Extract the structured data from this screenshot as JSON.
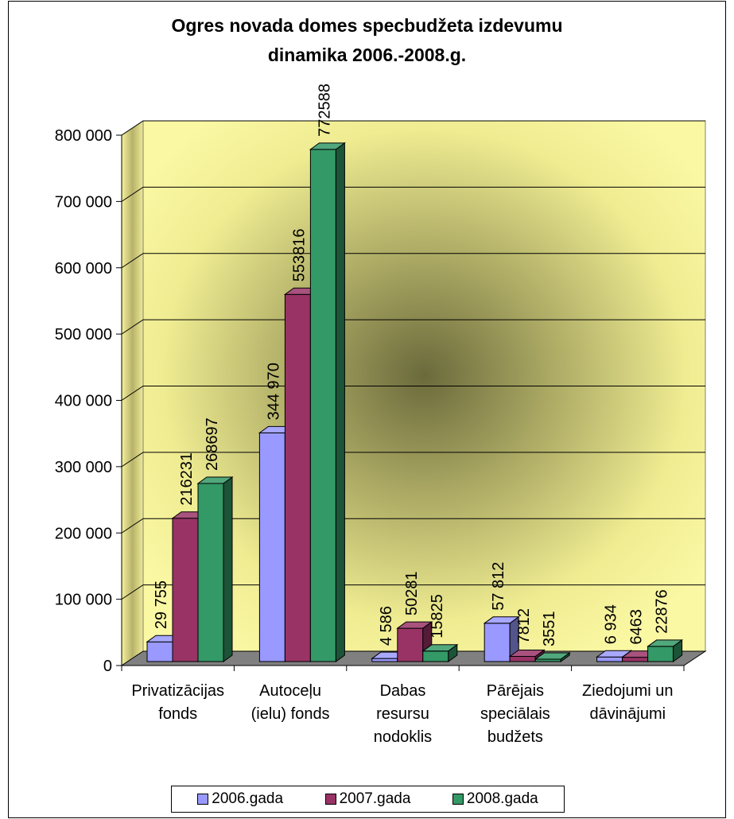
{
  "chart_data": {
    "type": "bar",
    "title": "Ogres novada domes specbudžeta izdevumu dinamika 2006.-2008.g.",
    "title_lines": [
      "Ogres novada domes specbudžeta izdevumu",
      "dinamika 2006.-2008.g."
    ],
    "categories": [
      [
        "Privatizācijas",
        "fonds"
      ],
      [
        "Autoceļu",
        "(ielu) fonds"
      ],
      [
        "Dabas",
        "resursu",
        "nodoklis"
      ],
      [
        "Pārējais",
        "speciālais",
        "budžets"
      ],
      [
        "Ziedojumi un",
        "dāvinājumi"
      ]
    ],
    "series": [
      {
        "name": "2006.gada",
        "color": "#9999ff",
        "values": [
          29755,
          344970,
          4586,
          57812,
          6934
        ],
        "labels": [
          "29 755",
          "344 970",
          "4 586",
          "57 812",
          "6 934"
        ]
      },
      {
        "name": "2007.gada",
        "color": "#993366",
        "values": [
          216231,
          553816,
          50281,
          7812,
          6463
        ],
        "labels": [
          "216231",
          "553816",
          "50281",
          "7812",
          "6463"
        ]
      },
      {
        "name": "2008.gada",
        "color": "#339966",
        "values": [
          268697,
          772588,
          15825,
          3551,
          22876
        ],
        "labels": [
          "268697",
          "772588",
          "15825",
          "3551",
          "22876"
        ]
      }
    ],
    "yticks": [
      "0",
      "100 000",
      "200 000",
      "300 000",
      "400 000",
      "500 000",
      "600 000",
      "700 000",
      "800 000"
    ],
    "ylim": [
      0,
      800000
    ],
    "grid": true,
    "legend_position": "bottom"
  }
}
